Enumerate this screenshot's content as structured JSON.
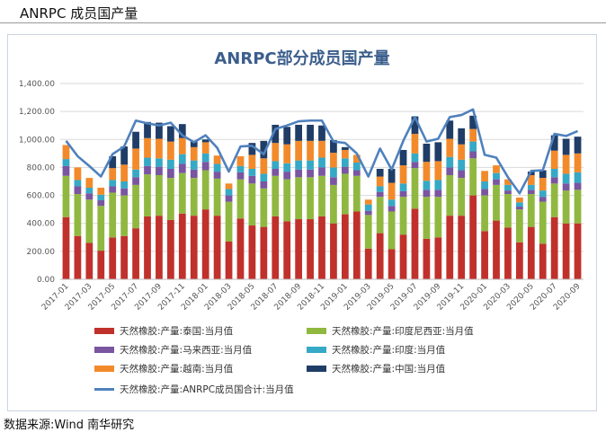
{
  "header": {
    "title": "ANRPC 成员国产量"
  },
  "source": {
    "text": "数据来源:Wind 南华研究"
  },
  "colors": {
    "thailand": "#c0312c",
    "indonesia": "#90b840",
    "malaysia": "#7a55a0",
    "india": "#35a9c6",
    "vietnam": "#f28a2b",
    "china": "#1f3d66",
    "total": "#4f81bd"
  },
  "chart_data": {
    "type": "bar",
    "stacked": true,
    "title": "ANRPC部分成员国产量",
    "xlabel": "",
    "ylabel": "",
    "ylim": [
      0,
      1400
    ],
    "yticks": [
      "0.00",
      "200.00",
      "400.00",
      "600.00",
      "800.00",
      "1,000.00",
      "1,200.00",
      "1,400.00"
    ],
    "grid": true,
    "legend_position": "bottom",
    "categories": [
      "2017-01",
      "2017-02",
      "2017-03",
      "2017-04",
      "2017-05",
      "2017-06",
      "2017-07",
      "2017-08",
      "2017-09",
      "2017-10",
      "2017-11",
      "2017-12",
      "2018-01",
      "2018-02",
      "2018-03",
      "2018-04",
      "2018-05",
      "2018-06",
      "2018-07",
      "2018-08",
      "2018-09",
      "2018-10",
      "2018-11",
      "2018-12",
      "2019-01",
      "2019-02",
      "2019-03",
      "2019-04",
      "2019-05",
      "2019-06",
      "2019-07",
      "2019-08",
      "2019-09",
      "2019-10",
      "2019-11",
      "2019-12",
      "2020-01",
      "2020-02",
      "2020-03",
      "2020-04",
      "2020-05",
      "2020-06",
      "2020-07",
      "2020-08",
      "2020-09"
    ],
    "series": [
      {
        "name": "天然橡胶:产量:泰国:当月值",
        "key": "thailand",
        "values": [
          445,
          310,
          260,
          205,
          300,
          310,
          365,
          450,
          455,
          425,
          470,
          455,
          500,
          455,
          270,
          435,
          385,
          375,
          450,
          415,
          430,
          430,
          450,
          400,
          465,
          485,
          220,
          330,
          215,
          320,
          505,
          290,
          300,
          455,
          455,
          600,
          345,
          420,
          370,
          265,
          375,
          255,
          445,
          400,
          400
        ]
      },
      {
        "name": "天然橡胶:产量:印度尼西亚:当月值",
        "key": "indonesia",
        "values": [
          295,
          300,
          310,
          320,
          320,
          290,
          310,
          300,
          290,
          300,
          290,
          270,
          280,
          265,
          285,
          280,
          300,
          275,
          290,
          300,
          300,
          300,
          290,
          275,
          290,
          255,
          240,
          260,
          270,
          270,
          290,
          300,
          290,
          290,
          270,
          265,
          255,
          255,
          240,
          235,
          235,
          300,
          240,
          235,
          240
        ]
      },
      {
        "name": "天然橡胶:产量:马来西亚:当月值",
        "key": "malaysia",
        "values": [
          70,
          55,
          45,
          40,
          45,
          50,
          55,
          60,
          60,
          65,
          65,
          60,
          60,
          50,
          45,
          50,
          55,
          50,
          50,
          55,
          55,
          55,
          60,
          55,
          50,
          40,
          30,
          35,
          40,
          40,
          45,
          50,
          50,
          55,
          55,
          50,
          45,
          40,
          25,
          20,
          30,
          35,
          45,
          50,
          50
        ]
      },
      {
        "name": "天然橡胶:产量:印度:当月值",
        "key": "india",
        "values": [
          50,
          45,
          40,
          40,
          45,
          50,
          55,
          60,
          60,
          65,
          70,
          65,
          60,
          55,
          45,
          45,
          50,
          55,
          55,
          60,
          65,
          65,
          70,
          70,
          60,
          55,
          45,
          40,
          45,
          55,
          60,
          65,
          70,
          75,
          75,
          70,
          55,
          45,
          40,
          30,
          35,
          45,
          60,
          70,
          75
        ]
      },
      {
        "name": "天然橡胶:产量:越南:当月值",
        "key": "vietnam",
        "values": [
          100,
          90,
          70,
          50,
          85,
          120,
          150,
          140,
          140,
          130,
          115,
          95,
          80,
          60,
          40,
          70,
          100,
          110,
          130,
          135,
          140,
          140,
          120,
          105,
          60,
          55,
          35,
          70,
          120,
          130,
          140,
          135,
          135,
          130,
          110,
          90,
          75,
          55,
          40,
          35,
          70,
          90,
          130,
          135,
          135
        ]
      },
      {
        "name": "天然橡胶:产量:中国:当月值",
        "key": "china",
        "values": [
          0,
          0,
          0,
          0,
          85,
          130,
          120,
          115,
          115,
          110,
          100,
          45,
          20,
          0,
          0,
          0,
          85,
          125,
          130,
          125,
          115,
          115,
          110,
          90,
          20,
          0,
          0,
          55,
          100,
          110,
          125,
          130,
          135,
          130,
          115,
          95,
          0,
          0,
          0,
          0,
          25,
          55,
          110,
          115,
          120
        ]
      },
      {
        "name": "天然橡胶:产量:ANRPC成员国合计:当月值",
        "key": "total",
        "type": "line",
        "values": [
          990,
          880,
          810,
          735,
          895,
          950,
          1135,
          1115,
          1100,
          1120,
          1030,
          980,
          1030,
          940,
          770,
          950,
          955,
          895,
          1075,
          1100,
          1130,
          1135,
          1135,
          985,
          975,
          900,
          735,
          935,
          785,
          990,
          1160,
          985,
          1005,
          1160,
          1175,
          1215,
          890,
          870,
          730,
          615,
          775,
          780,
          1040,
          1025,
          1060
        ]
      }
    ]
  }
}
